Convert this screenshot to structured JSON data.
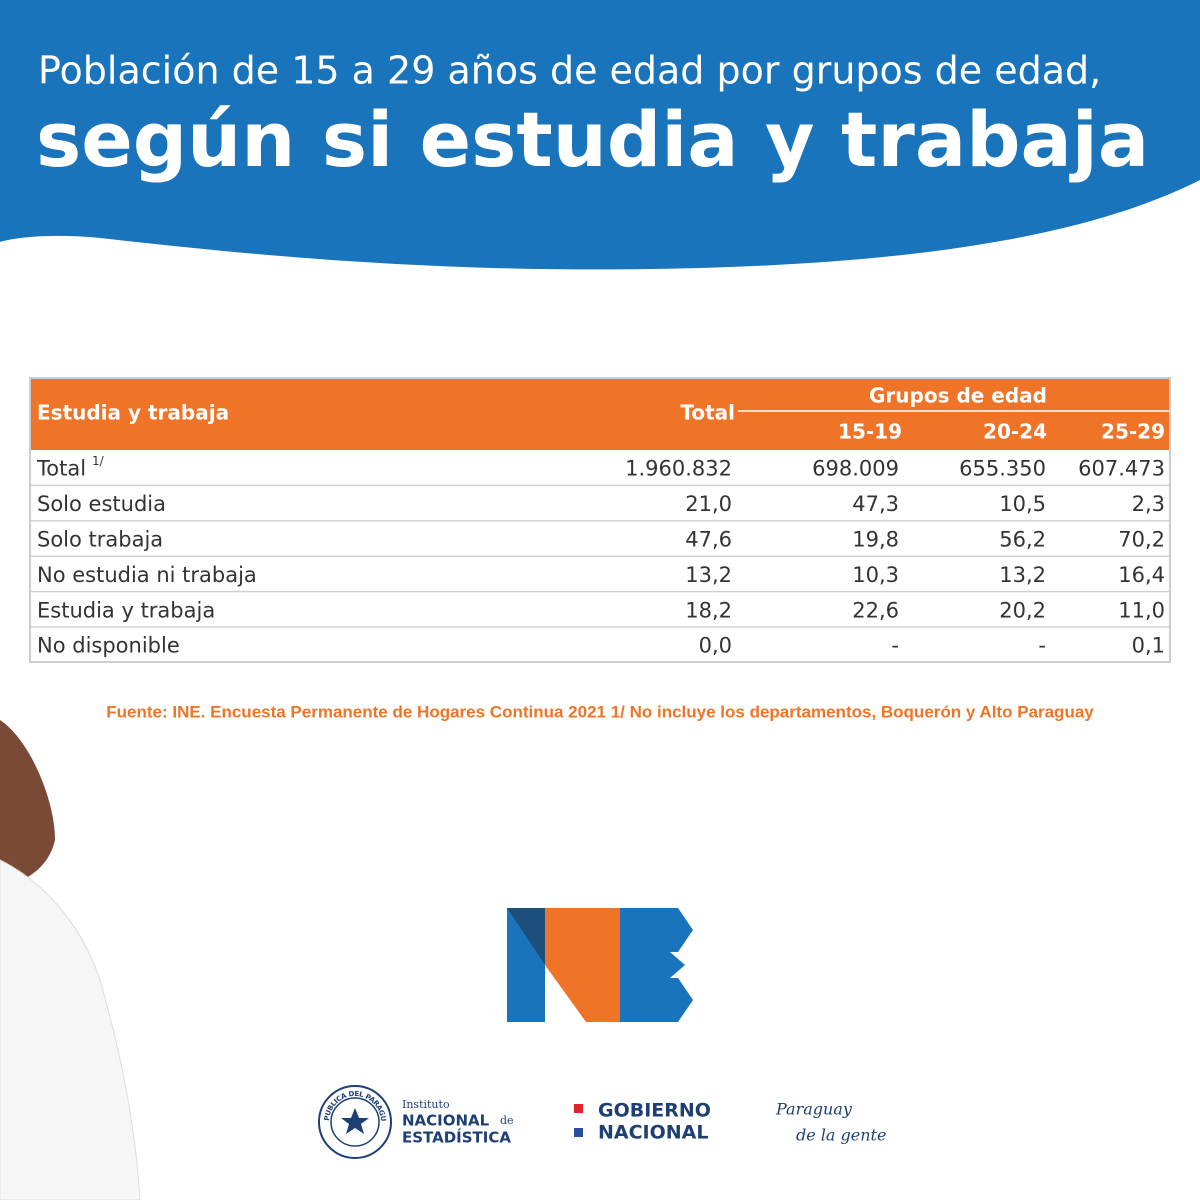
{
  "header": {
    "title_line1": "Población de 15 a 29 años de edad por grupos de edad,",
    "title_line2": "según si estudia y trabaja"
  },
  "table": {
    "columns": {
      "label": "Estudia y trabaja",
      "total": "Total",
      "group": "Grupos de edad",
      "groups": [
        "15-19",
        "20-24",
        "25-29"
      ]
    },
    "rows": [
      {
        "label": "Total",
        "note": "1/",
        "values": [
          "1.960.832",
          "698.009",
          "655.350",
          "607.473"
        ]
      },
      {
        "label": "Solo estudia",
        "values": [
          "21,0",
          "47,3",
          "10,5",
          "2,3"
        ]
      },
      {
        "label": "Solo trabaja",
        "values": [
          "47,6",
          "19,8",
          "56,2",
          "70,2"
        ]
      },
      {
        "label": "No estudia ni trabaja",
        "values": [
          "13,2",
          "10,3",
          "13,2",
          "16,4"
        ]
      },
      {
        "label": "Estudia y trabaja",
        "values": [
          "18,2",
          "22,6",
          "20,2",
          "11,0"
        ]
      },
      {
        "label": "No disponible",
        "values": [
          "0,0",
          "-",
          "-",
          "0,1"
        ]
      }
    ]
  },
  "source": "Fuente: INE. Encuesta Permanente de Hogares Continua 2021 1/ No incluye los departamentos, Boquerón y Alto Paraguay",
  "footer": {
    "seal": "REPUBLICA DEL PARAGUAY",
    "ine_line1": "Instituto",
    "ine_line2": "NACIONAL",
    "ine_line2b": "de",
    "ine_line3": "ESTADÍSTICA",
    "gob_line1": "GOBIERNO",
    "gob_line2": "NACIONAL",
    "slogan_line1": "Paraguay",
    "slogan_line2": "de la gente"
  }
}
